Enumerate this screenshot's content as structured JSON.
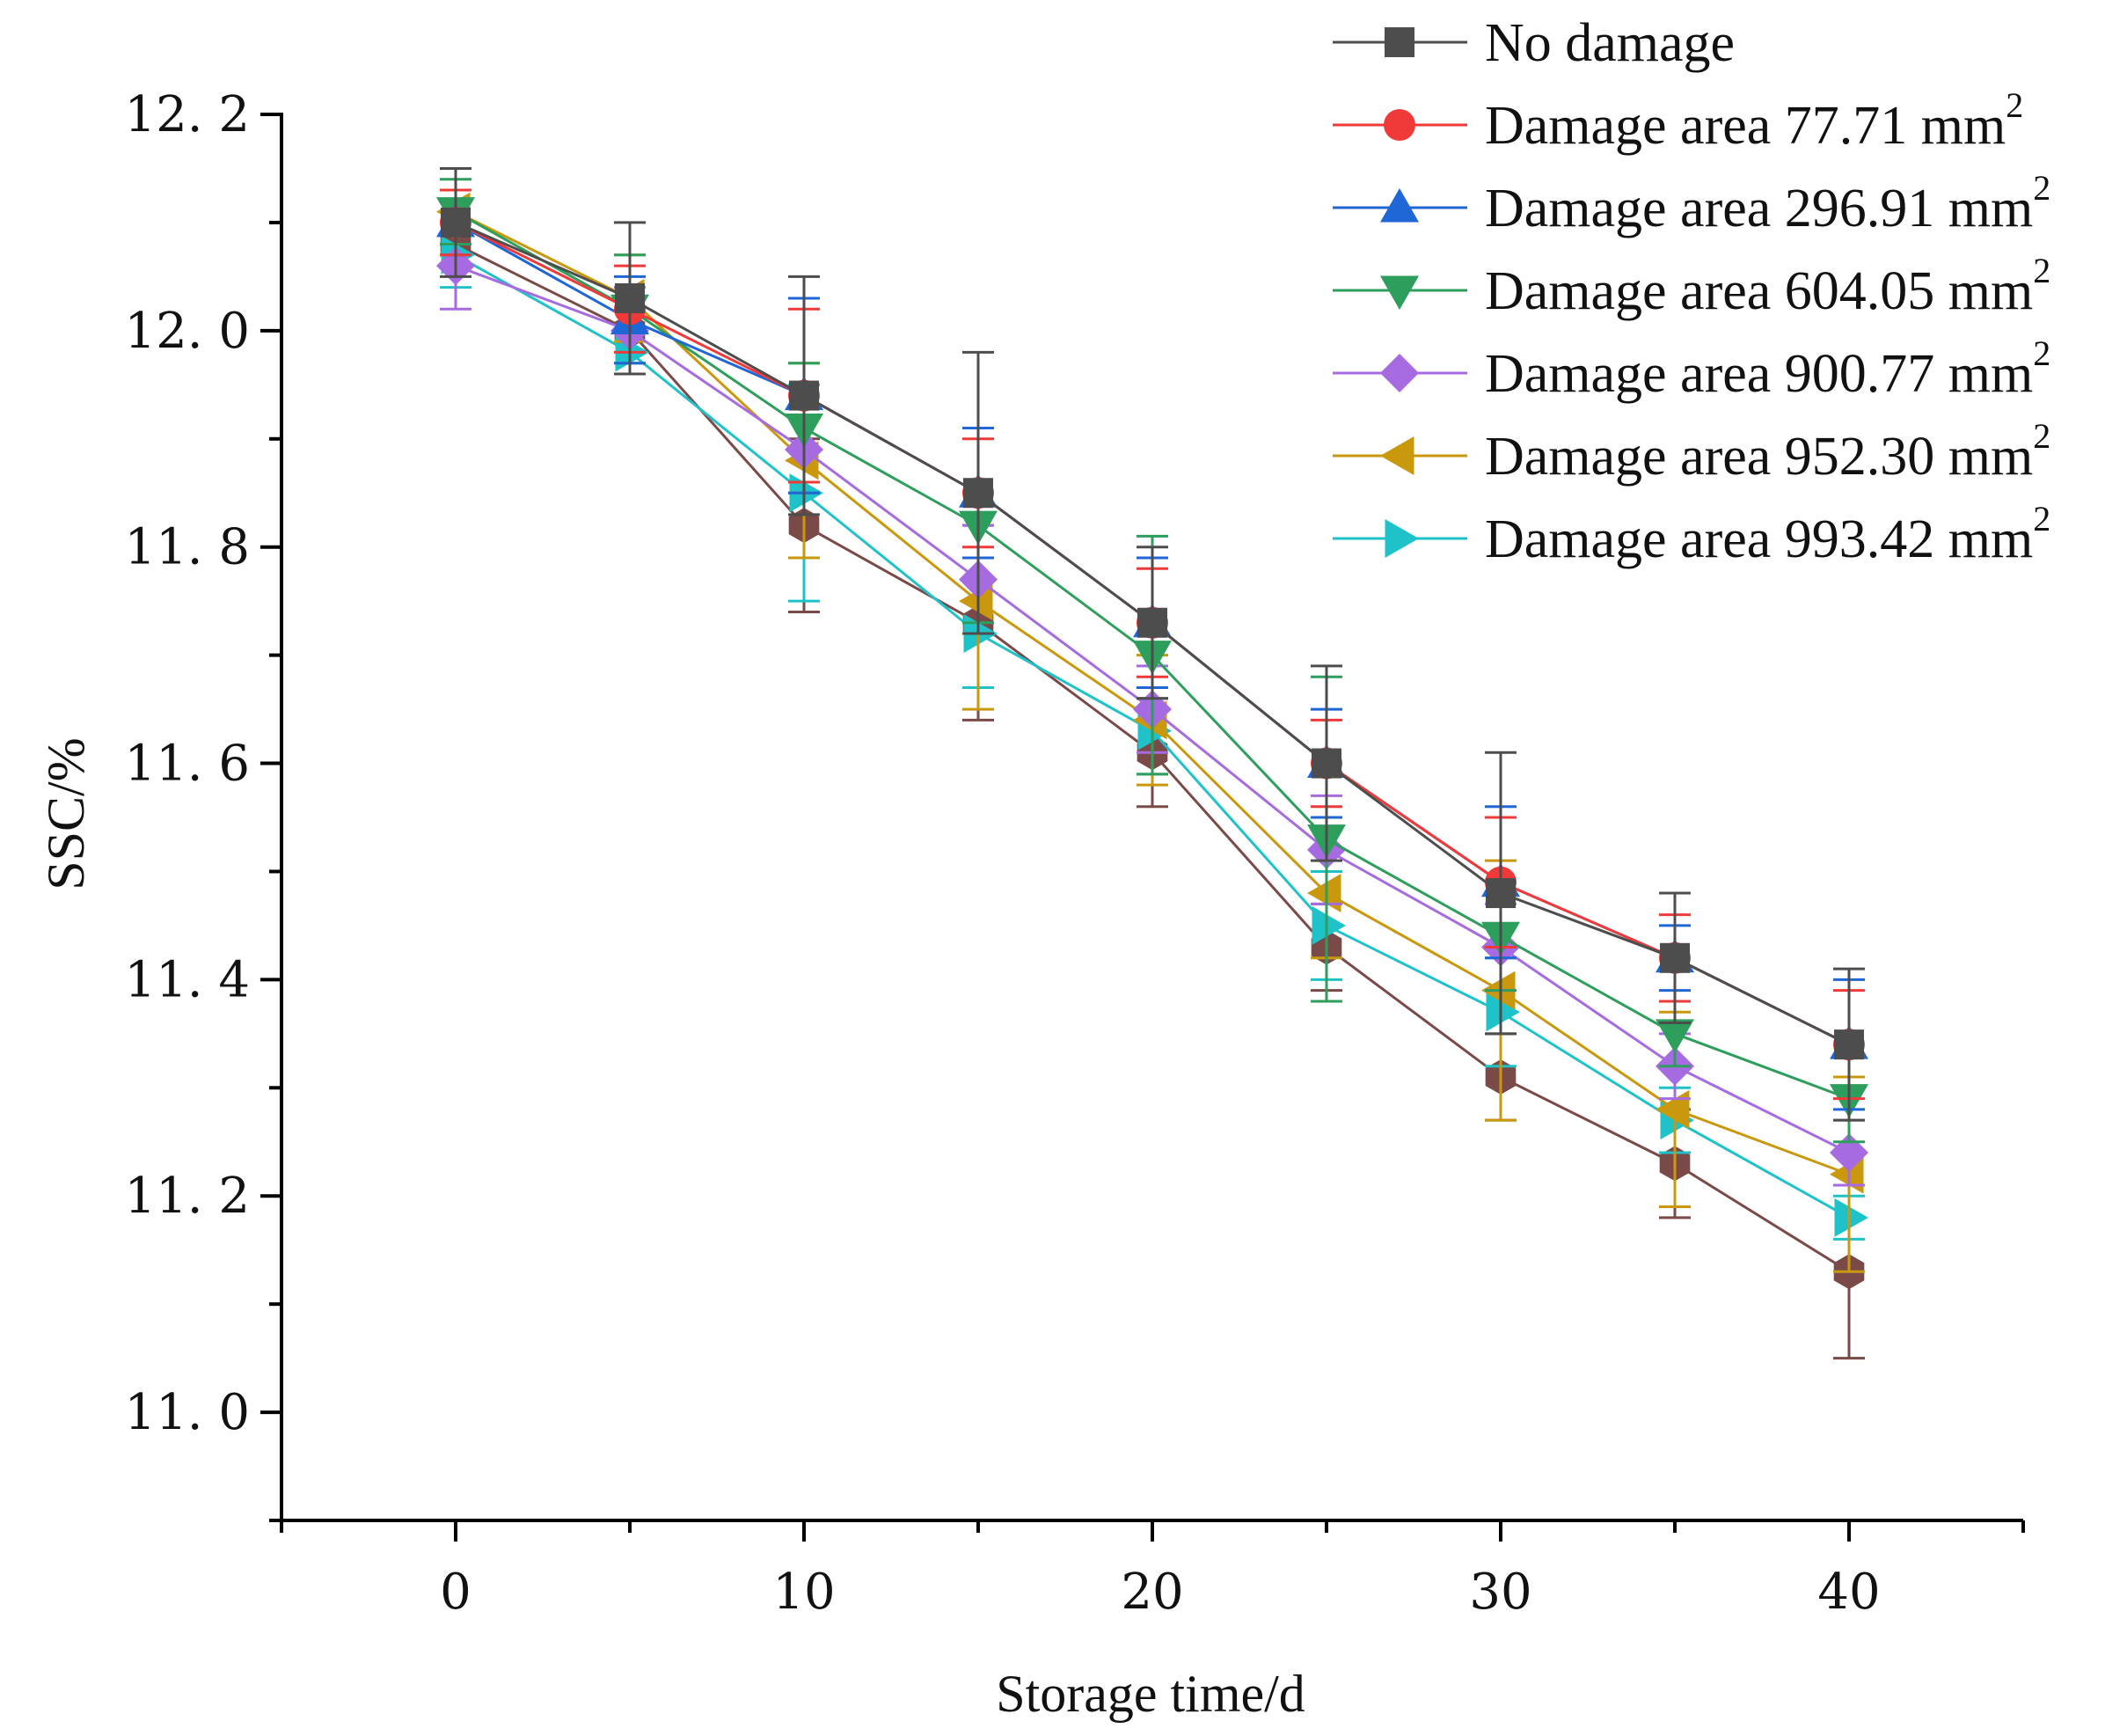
{
  "chart_data": {
    "type": "line",
    "xlabel": "Storage time/d",
    "ylabel": "SSC/%",
    "xlim": [
      -5,
      45
    ],
    "ylim": [
      10.9,
      12.2
    ],
    "x_ticks": [
      0,
      10,
      20,
      30,
      40
    ],
    "x_tick_labels": [
      "0",
      "10",
      "20",
      "30",
      "40"
    ],
    "y_ticks": [
      11.0,
      11.2,
      11.4,
      11.6,
      11.8,
      12.0,
      12.2
    ],
    "y_tick_labels": [
      "11. 0",
      "11. 2",
      "11. 4",
      "11. 6",
      "11. 8",
      "12. 0",
      "12. 2"
    ],
    "x": [
      0,
      5,
      10,
      15,
      20,
      25,
      30,
      35,
      40
    ],
    "legend_position": "top-right",
    "series": [
      {
        "name": "No damage",
        "legend_text": "No damage",
        "legend_sup": "",
        "marker": "square",
        "color": "#4d4d4d",
        "values": [
          12.1,
          12.03,
          11.94,
          11.85,
          11.73,
          11.6,
          11.48,
          11.42,
          11.34
        ],
        "errors": [
          0.05,
          0.07,
          0.11,
          0.13,
          0.07,
          0.09,
          0.13,
          0.06,
          0.07
        ]
      },
      {
        "name": "Damage area 77.71  mm2",
        "legend_text": "Damage area 77.71  mm",
        "legend_sup": "2",
        "marker": "circle",
        "color": "#f03a3a",
        "values": [
          12.1,
          12.02,
          11.94,
          11.85,
          11.73,
          11.6,
          11.49,
          11.42,
          11.34
        ],
        "errors": [
          0.03,
          0.04,
          0.08,
          0.05,
          0.05,
          0.04,
          0.06,
          0.04,
          0.05
        ]
      },
      {
        "name": "Damage area 296.91 mm2",
        "legend_text": "Damage area 296.91 mm",
        "legend_sup": "2",
        "marker": "triangle-up",
        "color": "#1f66d6",
        "values": [
          12.1,
          12.01,
          11.94,
          11.85,
          11.73,
          11.6,
          11.49,
          11.42,
          11.34
        ],
        "errors": [
          0.03,
          0.04,
          0.09,
          0.06,
          0.06,
          0.05,
          0.07,
          0.03,
          0.06
        ]
      },
      {
        "name": "Damage area 604.05 mm2",
        "legend_text": "Damage area 604.05 mm",
        "legend_sup": "2",
        "marker": "triangle-down",
        "color": "#2e9e5c",
        "values": [
          12.11,
          12.02,
          11.91,
          11.82,
          11.7,
          11.53,
          11.44,
          11.35,
          11.29
        ],
        "errors": [
          0.03,
          0.05,
          0.06,
          0.09,
          0.11,
          0.15,
          0.05,
          0.03,
          0.04
        ]
      },
      {
        "name": "Damage area 900.77 mm2",
        "legend_text": "Damage area 900.77 mm",
        "legend_sup": "2",
        "marker": "diamond",
        "color": "#a66be0",
        "values": [
          12.06,
          12.0,
          11.89,
          11.77,
          11.65,
          11.52,
          11.43,
          11.32,
          11.24
        ],
        "errors": [
          0.04,
          0.04,
          0.04,
          0.05,
          0.04,
          0.05,
          0.04,
          0.03,
          0.03
        ]
      },
      {
        "name": "Damage area 952.30 mm2",
        "legend_text": "Damage area 952.30 mm",
        "legend_sup": "2",
        "marker": "triangle-left",
        "color": "#c9980d",
        "values": [
          12.11,
          12.03,
          11.88,
          11.75,
          11.64,
          11.48,
          11.39,
          11.28,
          11.22
        ],
        "errors": [
          0.04,
          0.04,
          0.09,
          0.1,
          0.06,
          0.06,
          0.12,
          0.09,
          0.09
        ]
      },
      {
        "name": "Damage area 993.42 mm2",
        "legend_text": "Damage area 993.42 mm",
        "legend_sup": "2",
        "marker": "triangle-right",
        "color": "#1fc2c8",
        "values": [
          12.07,
          11.98,
          11.85,
          11.72,
          11.63,
          11.45,
          11.37,
          11.27,
          11.18
        ],
        "errors": [
          0.03,
          0.02,
          0.1,
          0.05,
          0.04,
          0.05,
          0.05,
          0.03,
          0.02
        ]
      },
      {
        "name": "",
        "legend_text": "",
        "legend_sup": "",
        "marker": "hexagon",
        "color": "#7a4a48",
        "values": [
          12.08,
          12.0,
          11.82,
          11.73,
          11.61,
          11.43,
          11.31,
          11.23,
          11.13
        ],
        "errors": [
          0.02,
          0.04,
          0.08,
          0.09,
          0.05,
          0.04,
          0.04,
          0.05,
          0.08
        ]
      }
    ]
  }
}
